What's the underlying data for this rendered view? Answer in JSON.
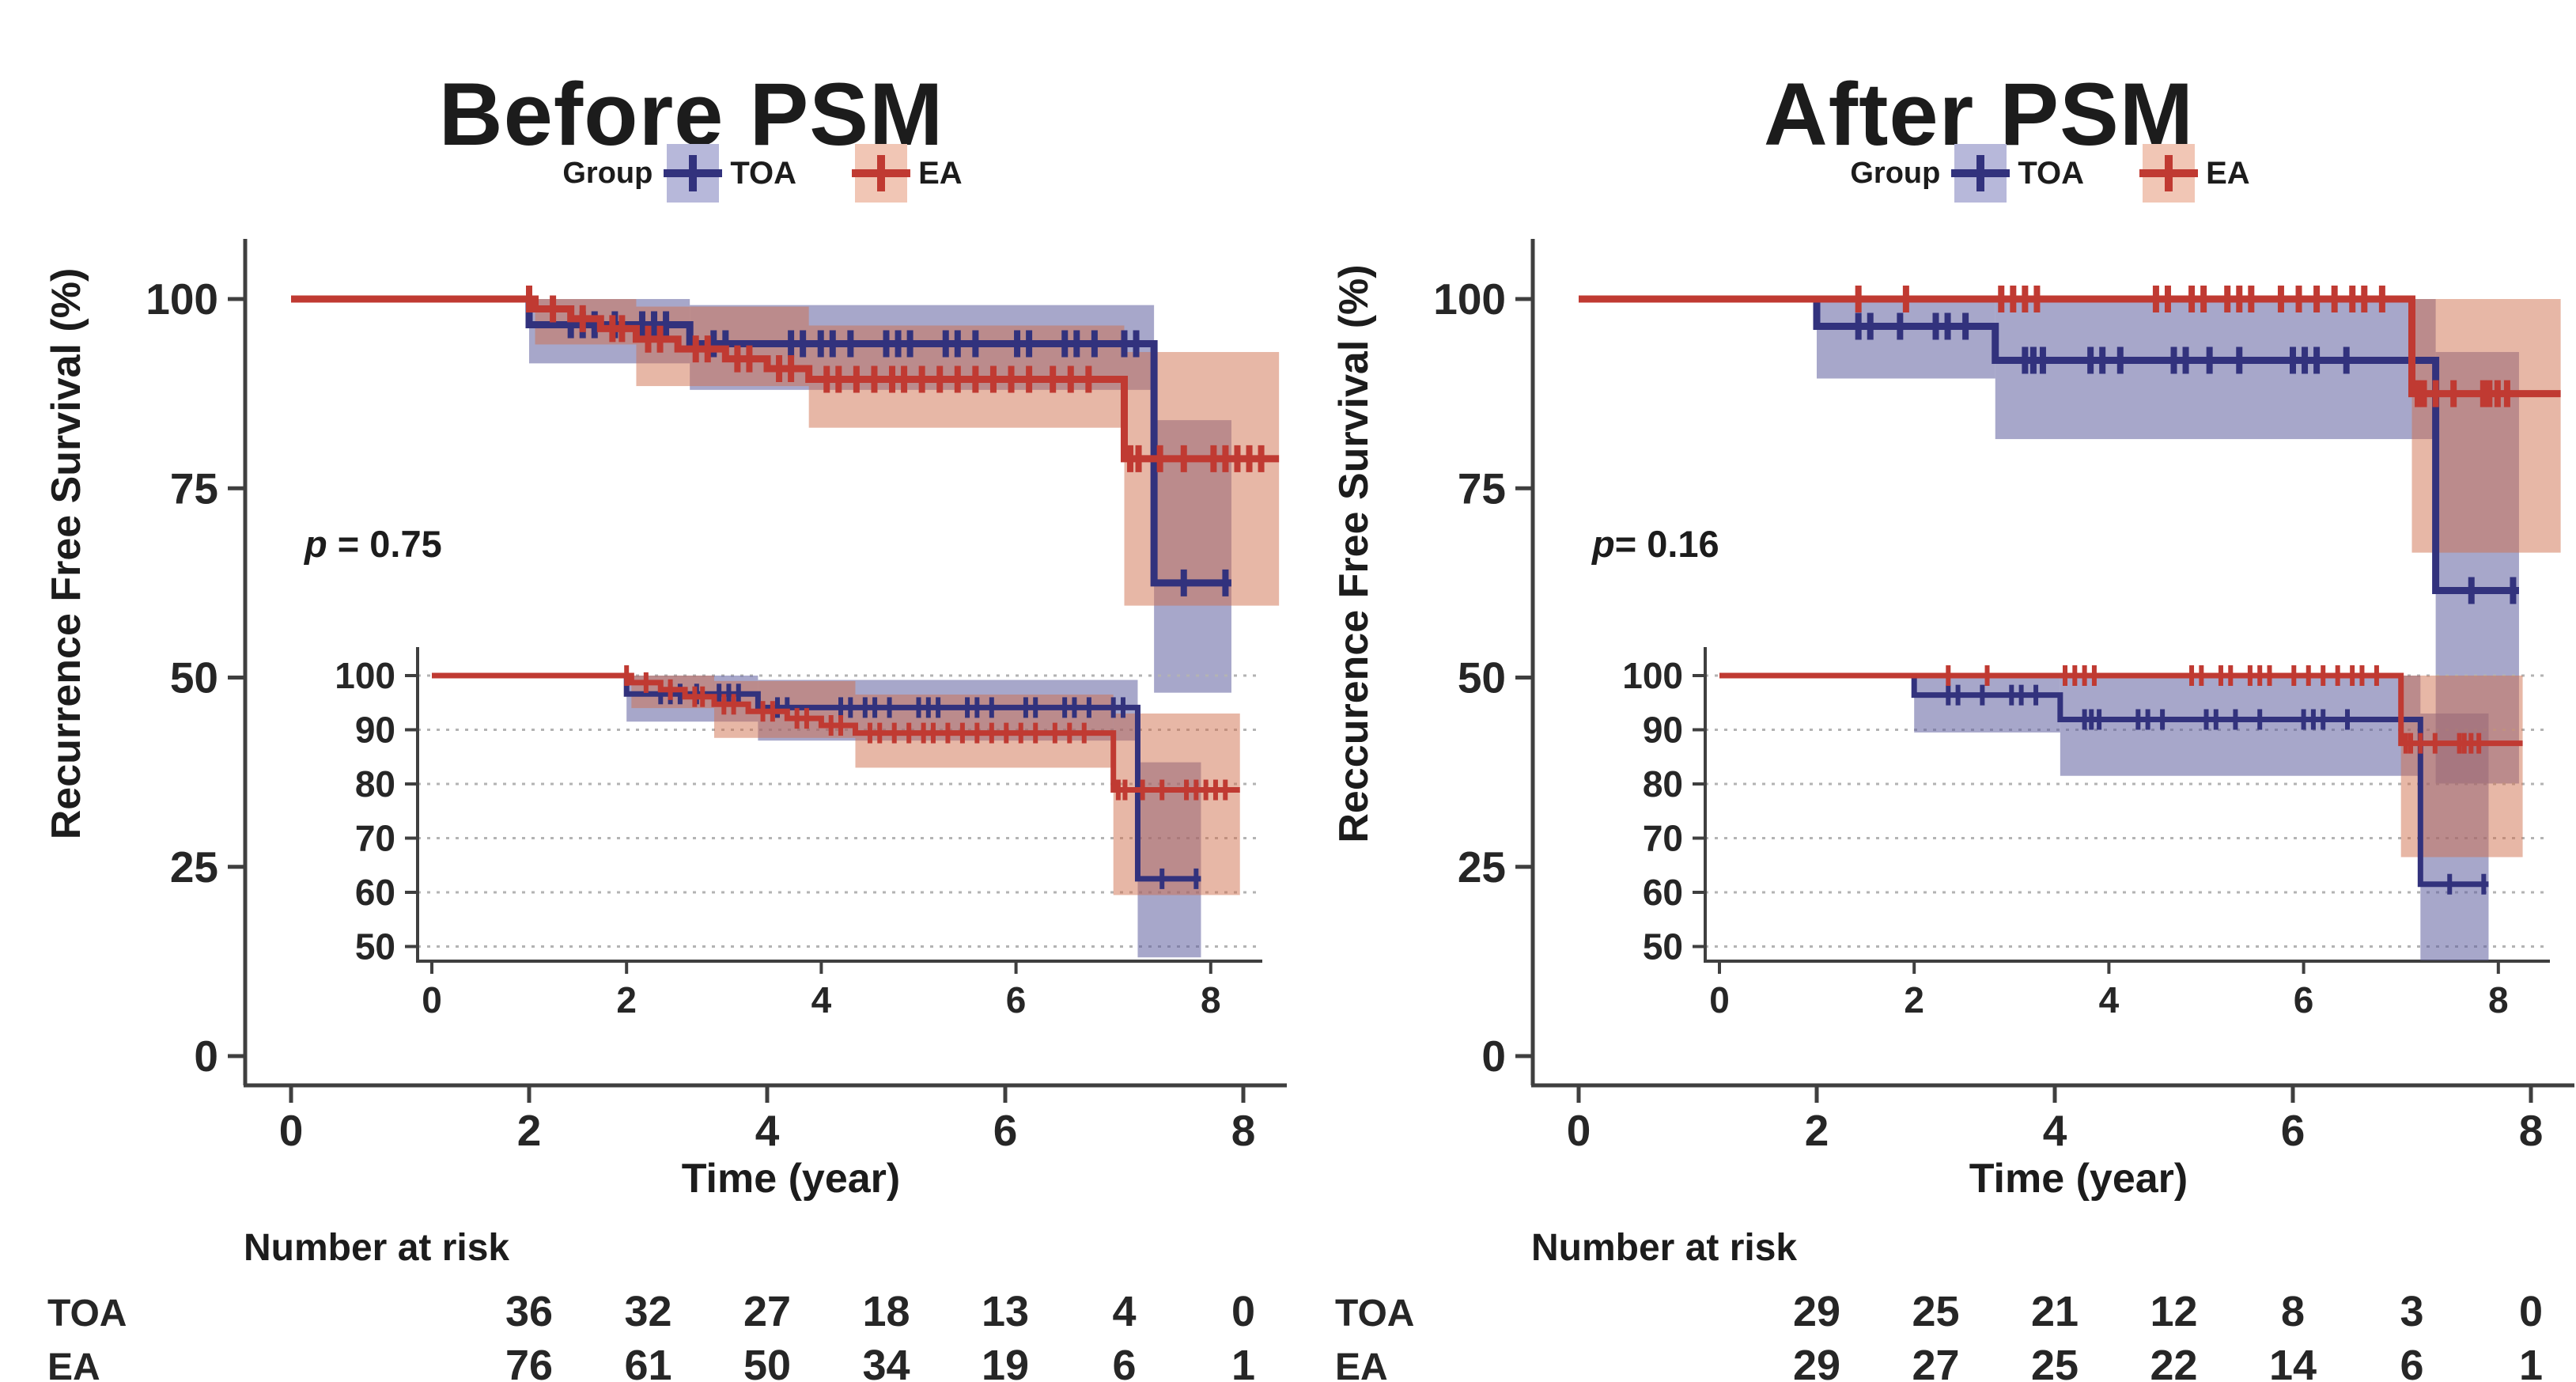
{
  "legend": {
    "group_label": "Group"
  },
  "colors": {
    "axis": "#3f3f3f",
    "text": "#262626",
    "grid": "#b3b3b3",
    "toa": {
      "line": "#32327d",
      "band": "#5e5e9e",
      "band_opacity": 0.55,
      "legend_bg": "#b7b8da"
    },
    "ea": {
      "line": "#c03a32",
      "band": "#d0704e",
      "band_opacity": 0.5,
      "legend_bg": "#f1c6b5"
    }
  },
  "panels": [
    {
      "title": "Before PSM",
      "ylabel": "Recurrence Free Survival (%)",
      "xlabel": "Time (year)",
      "p_italic": "p",
      "p_rest": " = 0.75",
      "risk_header": "Number at risk"
    },
    {
      "title": "After PSM",
      "ylabel": "Reccurence Free Survival (%)",
      "xlabel": "Time (year)",
      "p_italic": "p",
      "p_rest": "= 0.16",
      "risk_header": "Number at risk"
    }
  ],
  "chart_data": [
    {
      "type": "line",
      "subtype": "kaplan-meier-step",
      "title": "Before PSM",
      "xlabel": "Time (year)",
      "ylabel": "Recurrence Free Survival (%)",
      "pvalue": "p = 0.75",
      "xlim": [
        0,
        8.4
      ],
      "ylim": [
        0,
        100
      ],
      "xticks": [
        0,
        2,
        4,
        6,
        8
      ],
      "yticks": [
        100,
        75,
        50,
        25,
        0
      ],
      "grid": false,
      "legend_position": "top",
      "inset": {
        "ylim": [
          50,
          100
        ],
        "yticks": [
          100,
          90,
          80,
          70,
          60,
          50
        ],
        "xticks": [
          0,
          2,
          4,
          6,
          8
        ],
        "grid": "dotted"
      },
      "series": [
        {
          "name": "TOA",
          "key": "toa",
          "steps": [
            [
              0,
              100
            ],
            [
              2.0,
              96.6
            ],
            [
              3.35,
              94.1
            ],
            [
              7.25,
              62.5
            ],
            [
              7.9,
              62.5
            ]
          ],
          "censors": [
            2.35,
            2.45,
            2.55,
            2.72,
            2.95,
            3.05,
            3.15,
            3.55,
            3.65,
            4.2,
            4.3,
            4.45,
            4.55,
            4.7,
            5.0,
            5.1,
            5.2,
            5.5,
            5.6,
            5.75,
            6.1,
            6.2,
            6.5,
            6.6,
            6.75,
            7.0,
            7.1,
            7.5,
            7.85
          ],
          "ci": [
            [
              2.0,
              3.35,
              100,
              91.5
            ],
            [
              3.35,
              7.25,
              99.2,
              88.0
            ],
            [
              7.25,
              7.9,
              84.0,
              48.0
            ]
          ]
        },
        {
          "name": "EA",
          "key": "ea",
          "steps": [
            [
              0,
              100
            ],
            [
              2.05,
              98.7
            ],
            [
              2.35,
              97.4
            ],
            [
              2.6,
              96.1
            ],
            [
              2.9,
              94.7
            ],
            [
              3.25,
              93.4
            ],
            [
              3.65,
              92.1
            ],
            [
              4.0,
              90.8
            ],
            [
              4.35,
              89.4
            ],
            [
              7.0,
              78.9
            ],
            [
              8.3,
              78.9
            ]
          ],
          "censors": [
            2.0,
            2.2,
            2.45,
            2.7,
            2.78,
            3.0,
            3.1,
            3.4,
            3.5,
            3.75,
            3.85,
            4.1,
            4.2,
            4.5,
            4.6,
            4.75,
            4.9,
            5.05,
            5.15,
            5.3,
            5.45,
            5.6,
            5.75,
            5.9,
            6.05,
            6.2,
            6.4,
            6.55,
            6.7,
            7.05,
            7.12,
            7.3,
            7.5,
            7.75,
            7.85,
            7.95,
            8.05,
            8.15
          ],
          "ci": [
            [
              2.05,
              2.9,
              100,
              94.0
            ],
            [
              2.9,
              4.35,
              99.0,
              88.5
            ],
            [
              4.35,
              7.0,
              96.5,
              83.0
            ],
            [
              7.0,
              8.3,
              93.0,
              59.5
            ]
          ]
        }
      ],
      "risk_table": {
        "header": "Number at risk",
        "times": [
          2,
          3,
          4,
          5,
          6,
          7,
          8
        ],
        "rows": [
          {
            "label": "TOA",
            "values": [
              36,
              32,
              27,
              18,
              13,
              4,
              0
            ]
          },
          {
            "label": "EA",
            "values": [
              76,
              61,
              50,
              34,
              19,
              6,
              1
            ]
          }
        ]
      }
    },
    {
      "type": "line",
      "subtype": "kaplan-meier-step",
      "title": "After PSM",
      "xlabel": "Time (year)",
      "ylabel": "Reccurence Free Survival (%)",
      "pvalue": "p= 0.16",
      "xlim": [
        0,
        8.4
      ],
      "ylim": [
        0,
        100
      ],
      "xticks": [
        0,
        2,
        4,
        6,
        8
      ],
      "yticks": [
        100,
        75,
        50,
        25,
        0
      ],
      "grid": false,
      "legend_position": "top",
      "inset": {
        "ylim": [
          50,
          100
        ],
        "yticks": [
          100,
          90,
          80,
          70,
          60,
          50
        ],
        "xticks": [
          0,
          2,
          4,
          6,
          8
        ],
        "grid": "dotted"
      },
      "series": [
        {
          "name": "TOA",
          "key": "toa",
          "steps": [
            [
              0,
              100
            ],
            [
              2.0,
              96.4
            ],
            [
              3.5,
              91.9
            ],
            [
              7.2,
              61.5
            ],
            [
              7.9,
              61.5
            ]
          ],
          "censors": [
            2.35,
            2.45,
            2.7,
            3.0,
            3.1,
            3.25,
            3.75,
            3.82,
            3.9,
            4.3,
            4.4,
            4.55,
            5.0,
            5.1,
            5.3,
            5.55,
            6.0,
            6.1,
            6.2,
            6.45,
            7.5,
            7.85
          ],
          "ci": [
            [
              2.0,
              3.5,
              100,
              89.5
            ],
            [
              3.5,
              7.2,
              100,
              81.5
            ],
            [
              7.2,
              7.9,
              93.0,
              36.0
            ]
          ]
        },
        {
          "name": "EA",
          "key": "ea",
          "steps": [
            [
              0,
              100
            ],
            [
              7.0,
              87.5
            ],
            [
              8.25,
              87.5
            ]
          ],
          "censors": [
            2.35,
            2.75,
            3.55,
            3.65,
            3.75,
            3.85,
            4.85,
            4.95,
            5.15,
            5.25,
            5.45,
            5.55,
            5.65,
            5.9,
            6.05,
            6.2,
            6.35,
            6.5,
            6.6,
            6.75,
            7.05,
            7.1,
            7.2,
            7.35,
            7.6,
            7.65,
            7.72,
            7.8
          ],
          "ci": [
            [
              7.0,
              8.25,
              100,
              66.5
            ]
          ]
        }
      ],
      "risk_table": {
        "header": "Number at risk",
        "times": [
          2,
          3,
          4,
          5,
          6,
          7,
          8
        ],
        "rows": [
          {
            "label": "TOA",
            "values": [
              29,
              25,
              21,
              12,
              8,
              3,
              0
            ]
          },
          {
            "label": "EA",
            "values": [
              29,
              27,
              25,
              22,
              14,
              6,
              1
            ]
          }
        ]
      }
    }
  ]
}
